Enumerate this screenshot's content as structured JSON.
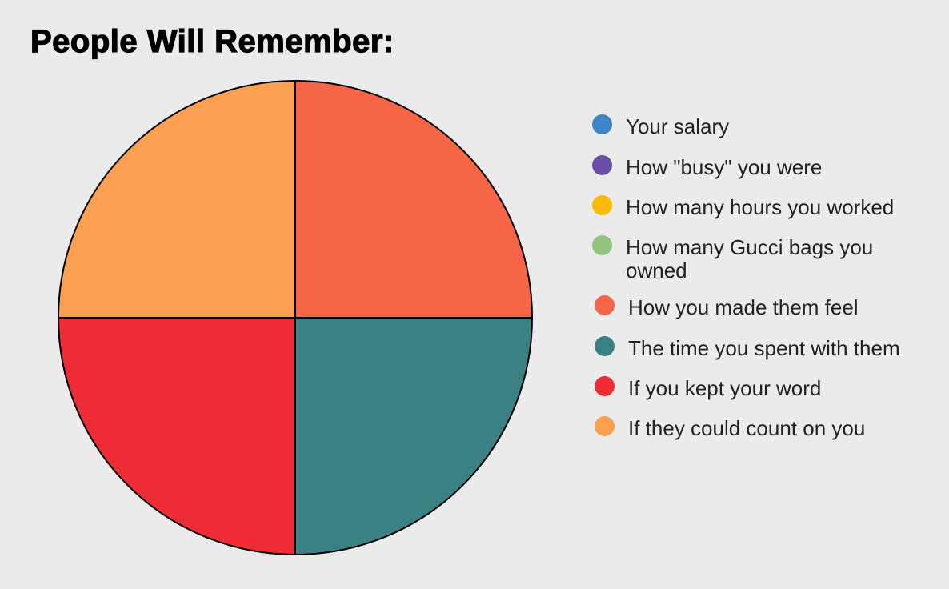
{
  "chart_data": {
    "type": "pie",
    "title": "People Will Remember:",
    "legend_placement": "right",
    "start_angle": "12 o'clock, clockwise",
    "slices": [
      {
        "label": "Your salary",
        "value": 0,
        "color": "#3d85c6"
      },
      {
        "label": "How \"busy\" you were",
        "value": 0,
        "color": "#674ea7"
      },
      {
        "label": "How many hours you worked",
        "value": 0,
        "color": "#f9bb06"
      },
      {
        "label": "How many Gucci bags you owned",
        "value": 0,
        "color": "#93c47d"
      },
      {
        "label": "How you made them feel",
        "value": 25,
        "color": "#f66545"
      },
      {
        "label": "The time you spent with them",
        "value": 25,
        "color": "#3b8184"
      },
      {
        "label": "If you kept your word",
        "value": 25,
        "color": "#ee2c36"
      },
      {
        "label": "If they could count on you",
        "value": 25,
        "color": "#fb9f52"
      }
    ]
  }
}
